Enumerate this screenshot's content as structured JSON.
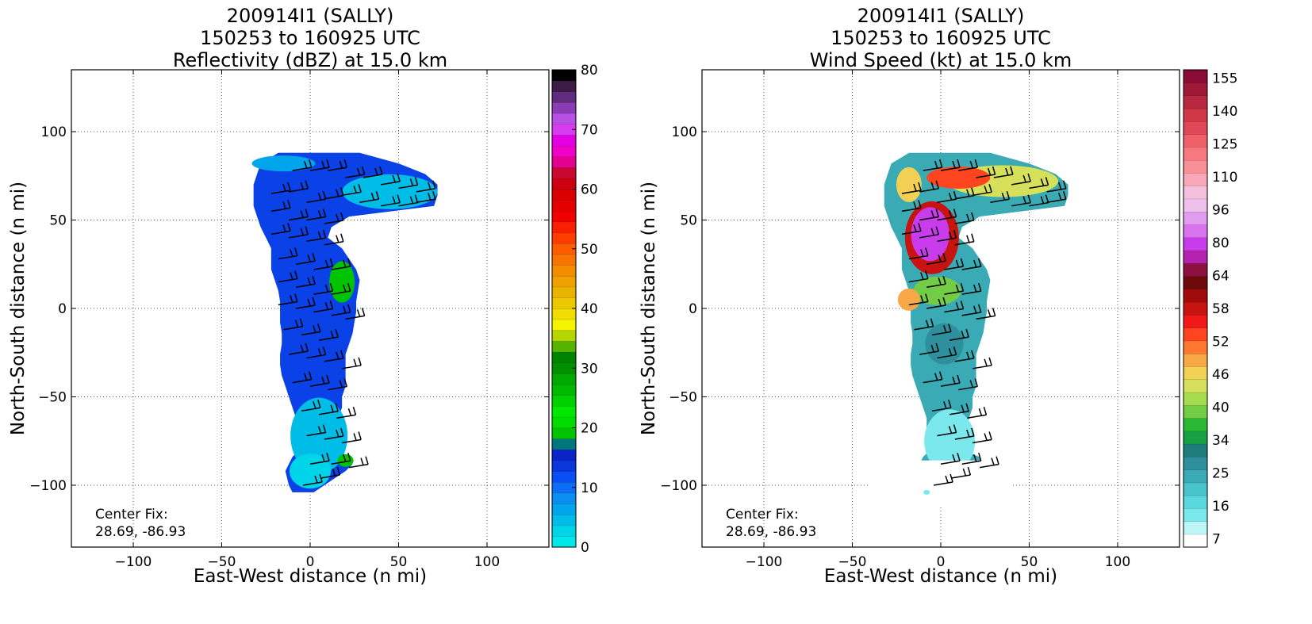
{
  "chart_data": [
    {
      "type": "heatmap",
      "title_lines": [
        "200914I1 (SALLY)",
        "150253 to 160925 UTC",
        "Reflectivity (dBZ) at 15.0 km"
      ],
      "xlabel": "East-West distance (n mi)",
      "ylabel": "North-South distance (n mi)",
      "xlim": [
        -135,
        135
      ],
      "ylim": [
        -135,
        135
      ],
      "xticks": [
        -100,
        -50,
        0,
        50,
        100
      ],
      "yticks": [
        -100,
        -50,
        0,
        50,
        100
      ],
      "xtick_labels": [
        "−100",
        "−50",
        "0",
        "50",
        "100"
      ],
      "ytick_labels": [
        "−100",
        "−50",
        "0",
        "50",
        "100"
      ],
      "grid": true,
      "annotation": [
        "Center Fix:",
        "28.69, -86.93"
      ],
      "colorbar": {
        "min": 0,
        "max": 80,
        "tick_values": [
          0,
          10,
          20,
          30,
          40,
          50,
          60,
          70,
          80
        ],
        "tick_labels": [
          "0",
          "10",
          "20",
          "30",
          "40",
          "50",
          "60",
          "70",
          "80"
        ],
        "colors": [
          "#00e8ea",
          "#00d4e8",
          "#00bde8",
          "#00a5ec",
          "#0a8ff0",
          "#0b6ef4",
          "#0b4ef4",
          "#0b36dc",
          "#0a24c8",
          "#00757d",
          "#00c400",
          "#00dc00",
          "#00e800",
          "#00d000",
          "#00b800",
          "#00a800",
          "#009000",
          "#008400",
          "#56b400",
          "#b6d400",
          "#f4f400",
          "#f0dc00",
          "#ecc800",
          "#e8b400",
          "#f0a000",
          "#f48c00",
          "#f87400",
          "#ff5c00",
          "#ff3c00",
          "#f82000",
          "#f00000",
          "#e40000",
          "#d80000",
          "#cc0010",
          "#c80830",
          "#e40090",
          "#f000c8",
          "#e400e4",
          "#d83cf0",
          "#b850e4",
          "#8a3cb4",
          "#602c7c",
          "#3c1c44",
          "#000000"
        ]
      },
      "field": {
        "variable": "Reflectivity (dBZ)",
        "level": "15.0 km"
      }
    },
    {
      "type": "heatmap",
      "title_lines": [
        "200914I1 (SALLY)",
        "150253 to 160925 UTC",
        "Wind Speed (kt) at 15.0 km"
      ],
      "xlabel": "East-West distance (n mi)",
      "ylabel": "North-South distance (n mi)",
      "xlim": [
        -135,
        135
      ],
      "ylim": [
        -135,
        135
      ],
      "xticks": [
        -100,
        -50,
        0,
        50,
        100
      ],
      "yticks": [
        -100,
        -50,
        0,
        50,
        100
      ],
      "xtick_labels": [
        "−100",
        "−50",
        "0",
        "50",
        "100"
      ],
      "ytick_labels": [
        "−100",
        "−50",
        "0",
        "50",
        "100"
      ],
      "grid": true,
      "annotation": [
        "Center Fix:",
        "28.69, -86.93"
      ],
      "colorbar": {
        "bins": 29,
        "tick_labels": [
          "7",
          "16",
          "25",
          "34",
          "40",
          "46",
          "52",
          "58",
          "64",
          "80",
          "96",
          "110",
          "125",
          "140",
          "155"
        ],
        "tick_bin_index": [
          0,
          2,
          4,
          6,
          8,
          10,
          12,
          14,
          16,
          18,
          20,
          22,
          24,
          26,
          28
        ],
        "colors": [
          "#ffffff",
          "#bcf6f6",
          "#7ae8ec",
          "#5ad8e0",
          "#48c4cc",
          "#3aaab4",
          "#2e909c",
          "#1e7c7c",
          "#16a044",
          "#2ab836",
          "#72cc46",
          "#a8dc50",
          "#d6e05a",
          "#f2d054",
          "#f8a846",
          "#ff7830",
          "#ff4420",
          "#f01818",
          "#c81410",
          "#a00c0c",
          "#6e0a0a",
          "#8c1040",
          "#b420b0",
          "#c83cec",
          "#d872ee",
          "#e09cee",
          "#f0c0ec",
          "#f4c0dc",
          "#f8a8b8",
          "#f89098",
          "#f87880",
          "#f06068",
          "#e04858",
          "#d03848",
          "#b82840",
          "#a01838",
          "#8a0c34"
        ]
      },
      "field": {
        "variable": "Wind Speed (kt)",
        "level": "15.0 km"
      }
    }
  ]
}
